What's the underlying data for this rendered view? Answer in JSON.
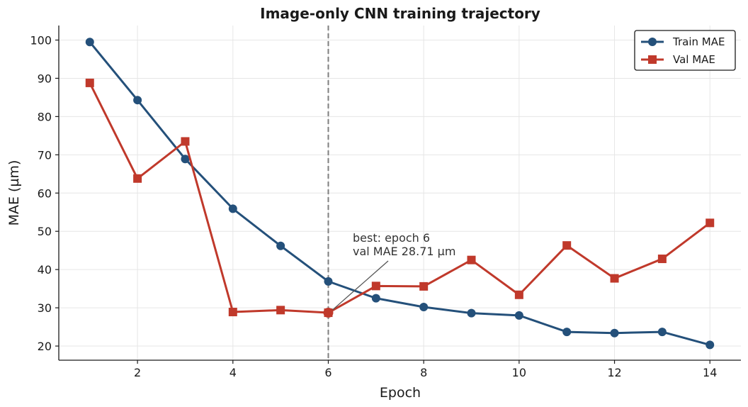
{
  "chart_data": {
    "type": "line",
    "title": "Image-only CNN training trajectory",
    "xlabel": "Epoch",
    "ylabel": "MAE (µm)",
    "x": [
      1,
      2,
      3,
      4,
      5,
      6,
      7,
      8,
      9,
      10,
      11,
      12,
      13,
      14
    ],
    "series": [
      {
        "name": "Train MAE",
        "color": "#24507a",
        "marker": "circle",
        "values": [
          99.5,
          84.3,
          68.9,
          55.9,
          46.2,
          36.9,
          32.5,
          30.2,
          28.6,
          28.0,
          23.7,
          23.4,
          23.7,
          20.3
        ]
      },
      {
        "name": "Val MAE",
        "color": "#c0392b",
        "marker": "square",
        "values": [
          88.8,
          63.8,
          73.5,
          28.9,
          29.4,
          28.71,
          35.7,
          35.6,
          42.5,
          33.4,
          46.3,
          37.7,
          42.8,
          52.2
        ]
      }
    ],
    "xlim": [
      0.35,
      14.65
    ],
    "ylim": [
      16.3,
      103.8
    ],
    "xticks": [
      2,
      4,
      6,
      8,
      10,
      12,
      14
    ],
    "yticks": [
      20,
      30,
      40,
      50,
      60,
      70,
      80,
      90,
      100
    ],
    "grid": true,
    "legend_position": "top-right",
    "best_epoch_line": 6,
    "annotation": {
      "line1": "best: epoch 6",
      "line2": "val MAE 28.71 µm",
      "x": 6,
      "y": 28.71
    }
  }
}
